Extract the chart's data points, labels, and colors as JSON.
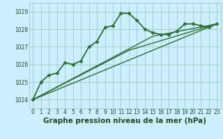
{
  "title": "Graphe pression niveau de la mer (hPa)",
  "bg_color": "#cceeff",
  "grid_color": "#99ccbb",
  "line_color": "#2d6e2d",
  "text_color": "#1a4d1a",
  "xlim": [
    -0.5,
    23.5
  ],
  "ylim": [
    1023.5,
    1029.5
  ],
  "yticks": [
    1024,
    1025,
    1026,
    1027,
    1028,
    1029
  ],
  "xticks": [
    0,
    1,
    2,
    3,
    4,
    5,
    6,
    7,
    8,
    9,
    10,
    11,
    12,
    13,
    14,
    15,
    16,
    17,
    18,
    19,
    20,
    21,
    22,
    23
  ],
  "series": [
    {
      "x": [
        0,
        1,
        2,
        3,
        4,
        5,
        6,
        7,
        8,
        9,
        10,
        11,
        12,
        13,
        14,
        15,
        16,
        17,
        18,
        19,
        20,
        21,
        22,
        23
      ],
      "y": [
        1024.0,
        1025.0,
        1025.4,
        1025.5,
        1026.1,
        1026.0,
        1026.2,
        1027.0,
        1027.3,
        1028.1,
        1028.2,
        1028.9,
        1028.9,
        1028.5,
        1028.0,
        1027.8,
        1027.7,
        1027.7,
        1027.9,
        1028.3,
        1028.3,
        1028.2,
        1028.1,
        1028.3
      ],
      "marker": "D",
      "markersize": 2.5,
      "linewidth": 1.3,
      "has_marker": true
    },
    {
      "x": [
        0,
        23
      ],
      "y": [
        1024.0,
        1028.3
      ],
      "marker": null,
      "markersize": 0,
      "linewidth": 1.0,
      "has_marker": false
    },
    {
      "x": [
        0,
        12,
        23
      ],
      "y": [
        1024.0,
        1026.8,
        1028.3
      ],
      "marker": null,
      "markersize": 0,
      "linewidth": 1.0,
      "has_marker": false
    },
    {
      "x": [
        0,
        15,
        23
      ],
      "y": [
        1024.0,
        1027.6,
        1028.3
      ],
      "marker": null,
      "markersize": 0,
      "linewidth": 1.0,
      "has_marker": false
    }
  ],
  "title_fontsize": 7.5,
  "tick_fontsize": 5.5
}
